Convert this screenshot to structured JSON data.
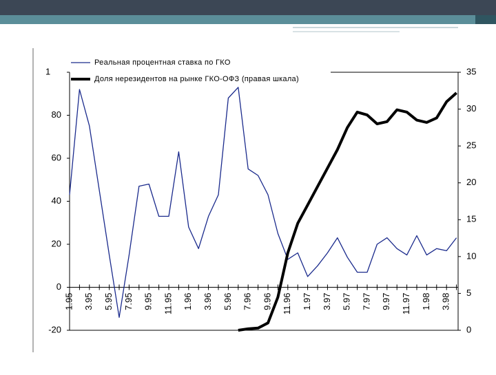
{
  "chart_data": {
    "type": "line",
    "categories": [
      "1.95",
      null,
      "3.95",
      null,
      "5.95",
      null,
      "7.95",
      null,
      "9.95",
      null,
      "11.95",
      null,
      "1.96",
      null,
      "3.96",
      null,
      "5.96",
      null,
      "7.96",
      null,
      "9.96",
      null,
      "11.96",
      null,
      "1.97",
      null,
      "3.97",
      null,
      "5.97",
      null,
      "7.97",
      null,
      "9.97",
      null,
      "11.97",
      null,
      "1.98",
      null,
      "3.98",
      null
    ],
    "series": [
      {
        "name": "Реальная процентная ставка по ГКО",
        "color": "#1a2a8c",
        "values": [
          43,
          92,
          75,
          45,
          15,
          -14,
          15,
          47,
          48,
          33,
          33,
          63,
          28,
          18,
          33,
          43,
          88,
          93,
          55,
          52,
          43,
          25,
          13,
          16,
          5,
          10,
          16,
          23,
          14,
          7,
          7,
          20,
          23,
          18,
          15,
          24,
          15,
          18,
          17,
          23
        ]
      },
      {
        "name": "Доля нерезидентов на рынке ГКО-ОФЗ (правая шкала)",
        "color": "#000000",
        "axis": "y2",
        "values": [
          null,
          null,
          null,
          null,
          null,
          null,
          null,
          null,
          null,
          null,
          null,
          null,
          null,
          null,
          null,
          null,
          null,
          0,
          0.2,
          0.3,
          1,
          4.5,
          10.5,
          14.5,
          17,
          19.5,
          22,
          24.5,
          27.5,
          29.6,
          29.2,
          28,
          28.3,
          29.9,
          29.6,
          28.5,
          28.2,
          28.8,
          31,
          32.2
        ]
      }
    ],
    "ylim": [
      -20,
      100
    ],
    "yticks": [
      -20,
      0,
      20,
      40,
      60,
      80,
      {
        "value": 100,
        "label": "1"
      }
    ],
    "y2lim": [
      0,
      35
    ],
    "y2ticks": [
      0,
      5,
      10,
      15,
      20,
      25,
      30,
      35
    ],
    "grid": false,
    "legend": "top-left"
  }
}
